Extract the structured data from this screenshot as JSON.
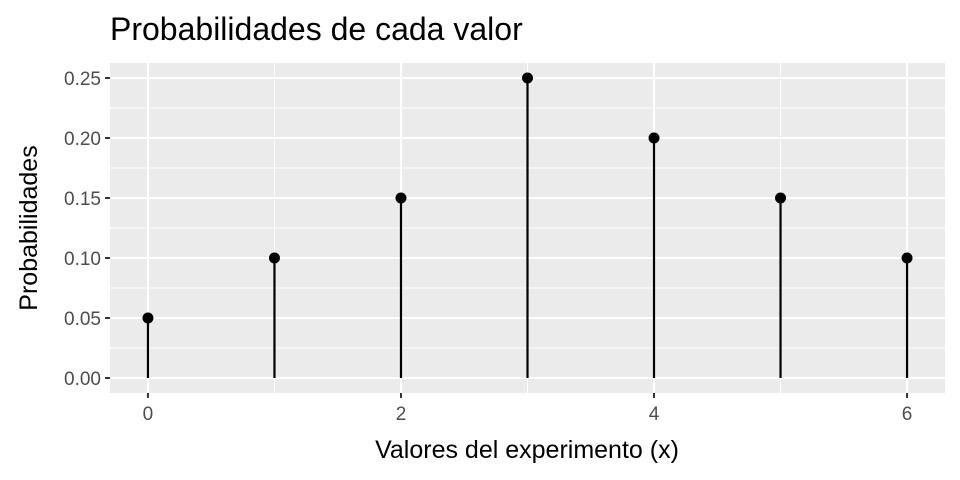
{
  "chart_data": {
    "type": "lollipop",
    "title": "Probabilidades de cada valor",
    "xlabel": "Valores del experimento (x)",
    "ylabel": "Probabilidades",
    "x": [
      0,
      1,
      2,
      3,
      4,
      5,
      6
    ],
    "values": [
      0.05,
      0.1,
      0.15,
      0.25,
      0.2,
      0.15,
      0.1
    ],
    "x_ticks": [
      "0",
      "2",
      "4",
      "6"
    ],
    "y_ticks": [
      "0.00",
      "0.05",
      "0.10",
      "0.15",
      "0.20",
      "0.25"
    ],
    "xlim": [
      -0.3,
      6.3
    ],
    "ylim": [
      -0.0125,
      0.2625
    ],
    "grid": true,
    "theme": "ggplot2 grey",
    "colors": {
      "panel": "#ebebeb",
      "grid": "#ffffff",
      "points": "#000000"
    }
  }
}
